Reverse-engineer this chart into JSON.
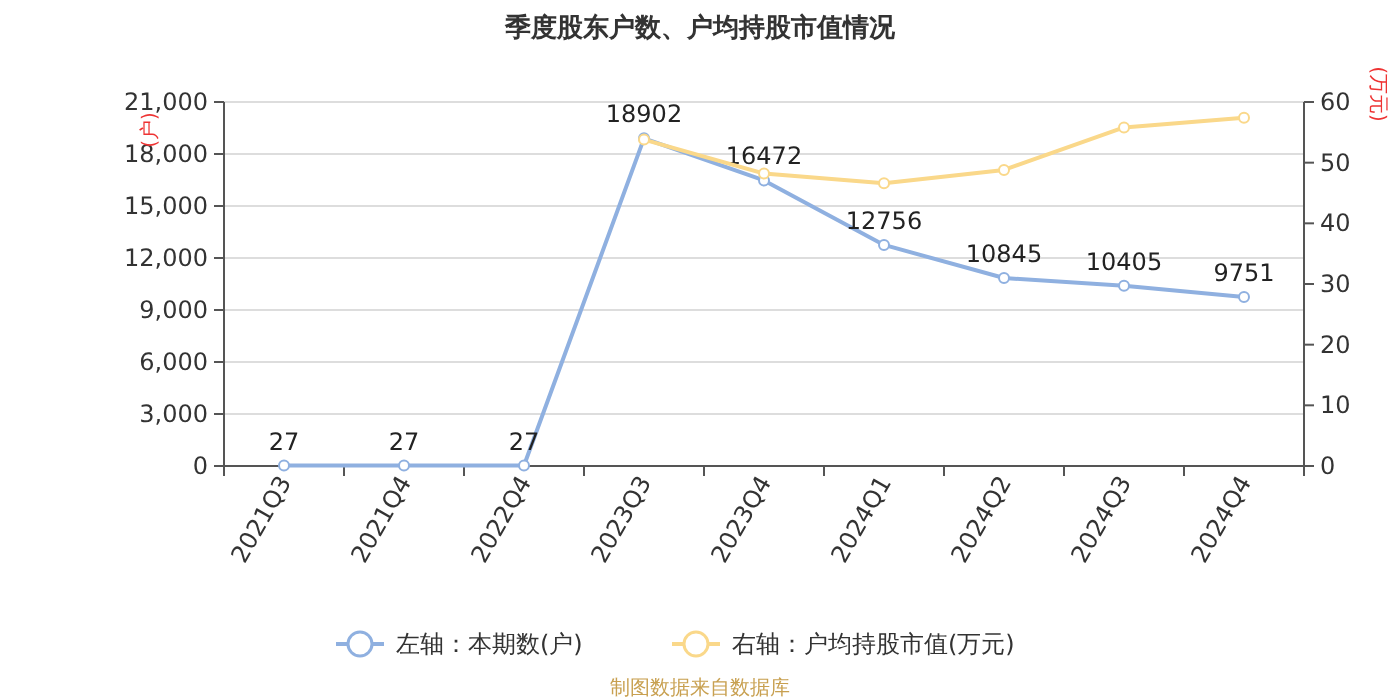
{
  "chart_data": {
    "type": "line",
    "title": "季度股东户数、户均持股市值情况",
    "ylabel": "(户)",
    "y2label": "(万元)",
    "categories": [
      "2021Q3",
      "2021Q4",
      "2022Q4",
      "2023Q3",
      "2023Q4",
      "2024Q1",
      "2024Q2",
      "2024Q3",
      "2024Q4"
    ],
    "series": [
      {
        "name": "左轴：本期数(户)",
        "color": "#8fb0e0",
        "values": [
          27,
          27,
          27,
          18902,
          16472,
          12756,
          10845,
          10405,
          9751
        ],
        "value_labels": [
          "27",
          "27",
          "27",
          "18902",
          "16472",
          "12756",
          "10845",
          "10405",
          "9751"
        ]
      },
      {
        "name": "右轴：户均持股市值(万元)",
        "color": "#fad88a",
        "axis": "y2",
        "values": [
          null,
          null,
          null,
          53.8,
          48.2,
          46.6,
          48.8,
          55.8,
          57.4
        ]
      }
    ],
    "ylim": [
      0,
      21000
    ],
    "yticks": [
      {
        "value": 0,
        "label": "0"
      },
      {
        "value": 3000,
        "label": "3,000"
      },
      {
        "value": 6000,
        "label": "6,000"
      },
      {
        "value": 9000,
        "label": "9,000"
      },
      {
        "value": 12000,
        "label": "12,000"
      },
      {
        "value": 15000,
        "label": "15,000"
      },
      {
        "value": 18000,
        "label": "18,000"
      },
      {
        "value": 21000,
        "label": "21,000"
      }
    ],
    "y2lim": [
      0,
      60
    ],
    "y2ticks": [
      0,
      10,
      20,
      30,
      40,
      50,
      60
    ],
    "grid": "y",
    "legend": "bottom",
    "marker": "circle",
    "line_style": "solid",
    "annotations": [
      "制图数据来自数据库"
    ]
  }
}
